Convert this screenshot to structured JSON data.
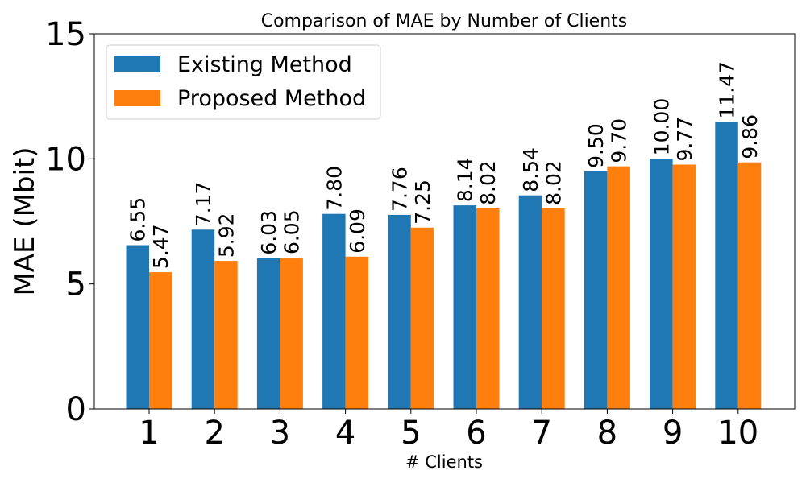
{
  "chart_data": {
    "type": "bar",
    "title": "Comparison of MAE by Number of Clients",
    "xlabel": "# Clients",
    "ylabel": "MAE (Mbit)",
    "categories": [
      "1",
      "2",
      "3",
      "4",
      "5",
      "6",
      "7",
      "8",
      "9",
      "10"
    ],
    "series": [
      {
        "name": "Existing Method",
        "color": "#1f77b4",
        "values": [
          6.55,
          7.17,
          6.03,
          7.8,
          7.76,
          8.14,
          8.54,
          9.5,
          10.0,
          11.47
        ],
        "labels": [
          "6.55",
          "7.17",
          "6.03",
          "7.80",
          "7.76",
          "8.14",
          "8.54",
          "9.50",
          "10.00",
          "11.47"
        ]
      },
      {
        "name": "Proposed Method",
        "color": "#ff7f0e",
        "values": [
          5.47,
          5.92,
          6.05,
          6.09,
          7.25,
          8.02,
          8.02,
          9.7,
          9.77,
          9.86
        ],
        "labels": [
          "5.47",
          "5.92",
          "6.05",
          "6.09",
          "7.25",
          "8.02",
          "8.02",
          "9.70",
          "9.77",
          "9.86"
        ]
      }
    ],
    "ylim": [
      0,
      15
    ],
    "yticks": [
      "0",
      "5",
      "10",
      "15"
    ],
    "grid": false,
    "legend": "top-left"
  }
}
